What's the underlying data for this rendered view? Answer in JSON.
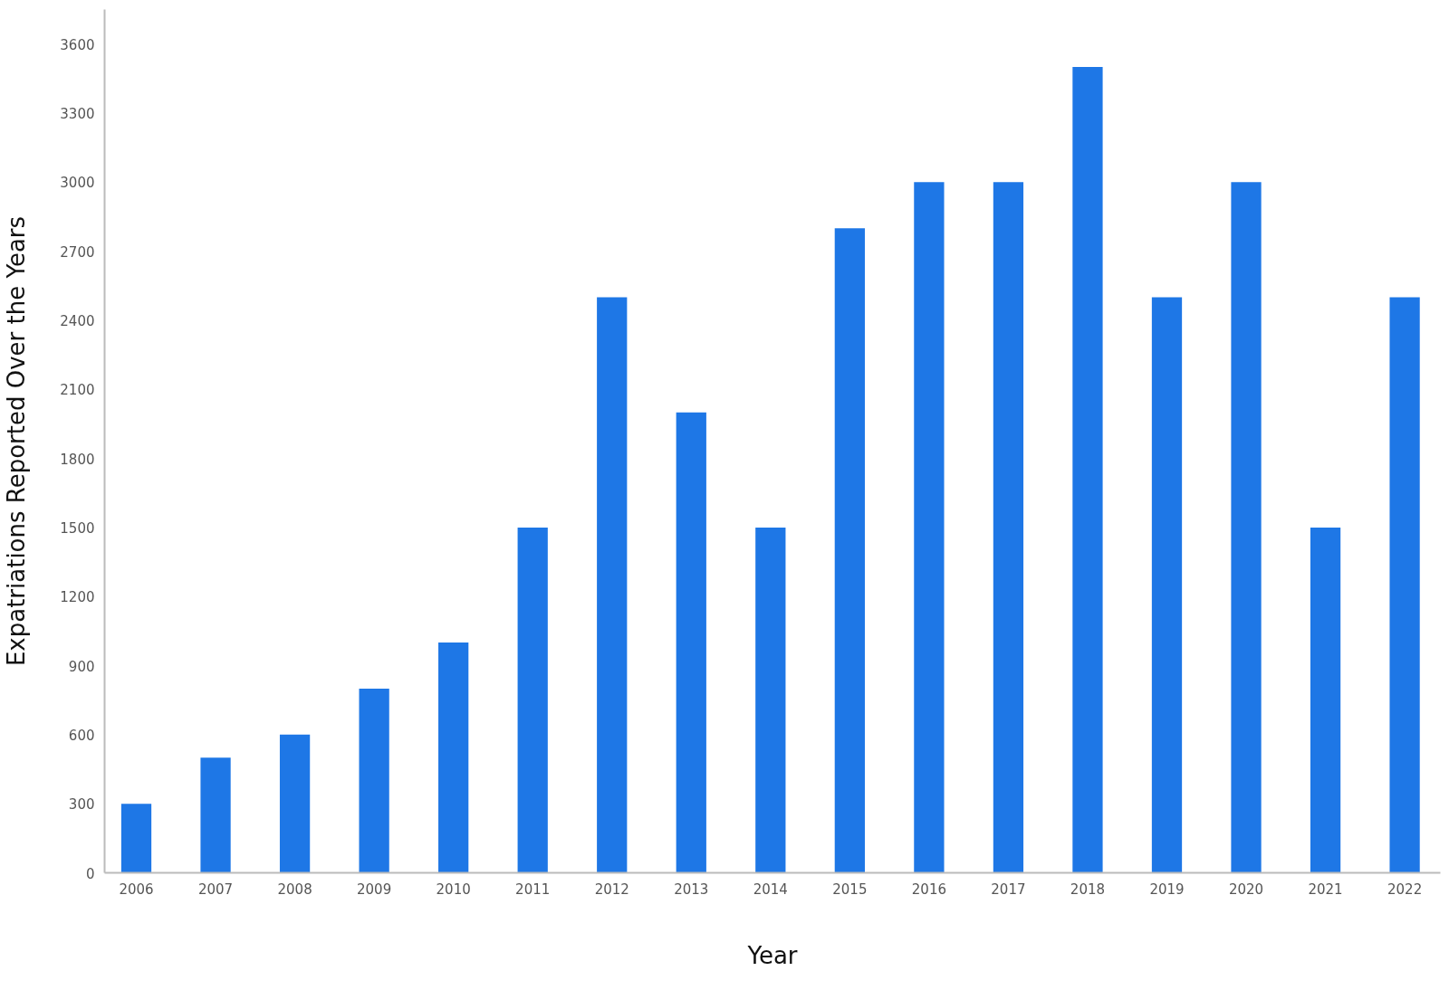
{
  "chart_data": {
    "type": "bar",
    "xlabel": "Year",
    "ylabel": "Expatriations Reported Over the Years",
    "categories": [
      "2006",
      "2007",
      "2008",
      "2009",
      "2010",
      "2011",
      "2012",
      "2013",
      "2014",
      "2015",
      "2016",
      "2017",
      "2018",
      "2019",
      "2020",
      "2021",
      "2022"
    ],
    "values": [
      300,
      500,
      600,
      800,
      1000,
      1500,
      2500,
      2000,
      1500,
      2800,
      3000,
      3000,
      3500,
      2500,
      3000,
      1500,
      2500
    ],
    "color": "#1e77e6",
    "ylim": [
      0,
      3750
    ],
    "yticks": [
      0,
      300,
      600,
      900,
      1200,
      1500,
      1800,
      2100,
      2400,
      2700,
      3000,
      3300,
      3600
    ],
    "grid": false
  }
}
